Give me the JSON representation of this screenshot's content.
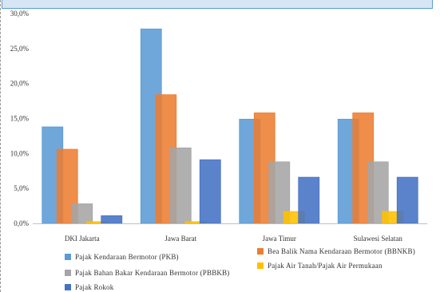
{
  "chart_data": {
    "type": "bar",
    "categories": [
      "DKI Jakarta",
      "Jawa Barat",
      "Jawa Timur",
      "Sulawesi Selatan"
    ],
    "series": [
      {
        "name": "Pajak Kendaraan Bermotor (PKB)",
        "color": "#5b9bd5",
        "values": [
          13.8,
          27.8,
          14.9,
          14.9
        ]
      },
      {
        "name": "Bea Balik Nama Kendaraan Bermotor (BBNKB)",
        "color": "#ed7d31",
        "values": [
          10.6,
          18.4,
          15.8,
          15.8
        ]
      },
      {
        "name": "Pajak Bahan Bakar Kendaraan Bermotor (PBBKB)",
        "color": "#a5a5a5",
        "values": [
          2.8,
          10.8,
          8.8,
          8.8
        ]
      },
      {
        "name": "Pajak Air Tanah/Pajak Air Permukaan",
        "color": "#ffc000",
        "values": [
          0.25,
          0.25,
          1.7,
          1.7
        ]
      },
      {
        "name": "Pajak Rokok",
        "color": "#4472c4",
        "values": [
          1.1,
          9.1,
          6.6,
          6.6
        ]
      }
    ],
    "y_ticks": [
      "0,0%",
      "5,0%",
      "10,0%",
      "15,0%",
      "20,0%",
      "25,0%",
      "30,0%"
    ],
    "ylim": [
      0,
      30
    ],
    "grid": false,
    "legend_position": "bottom",
    "title": "",
    "xlabel": "",
    "ylabel": ""
  }
}
